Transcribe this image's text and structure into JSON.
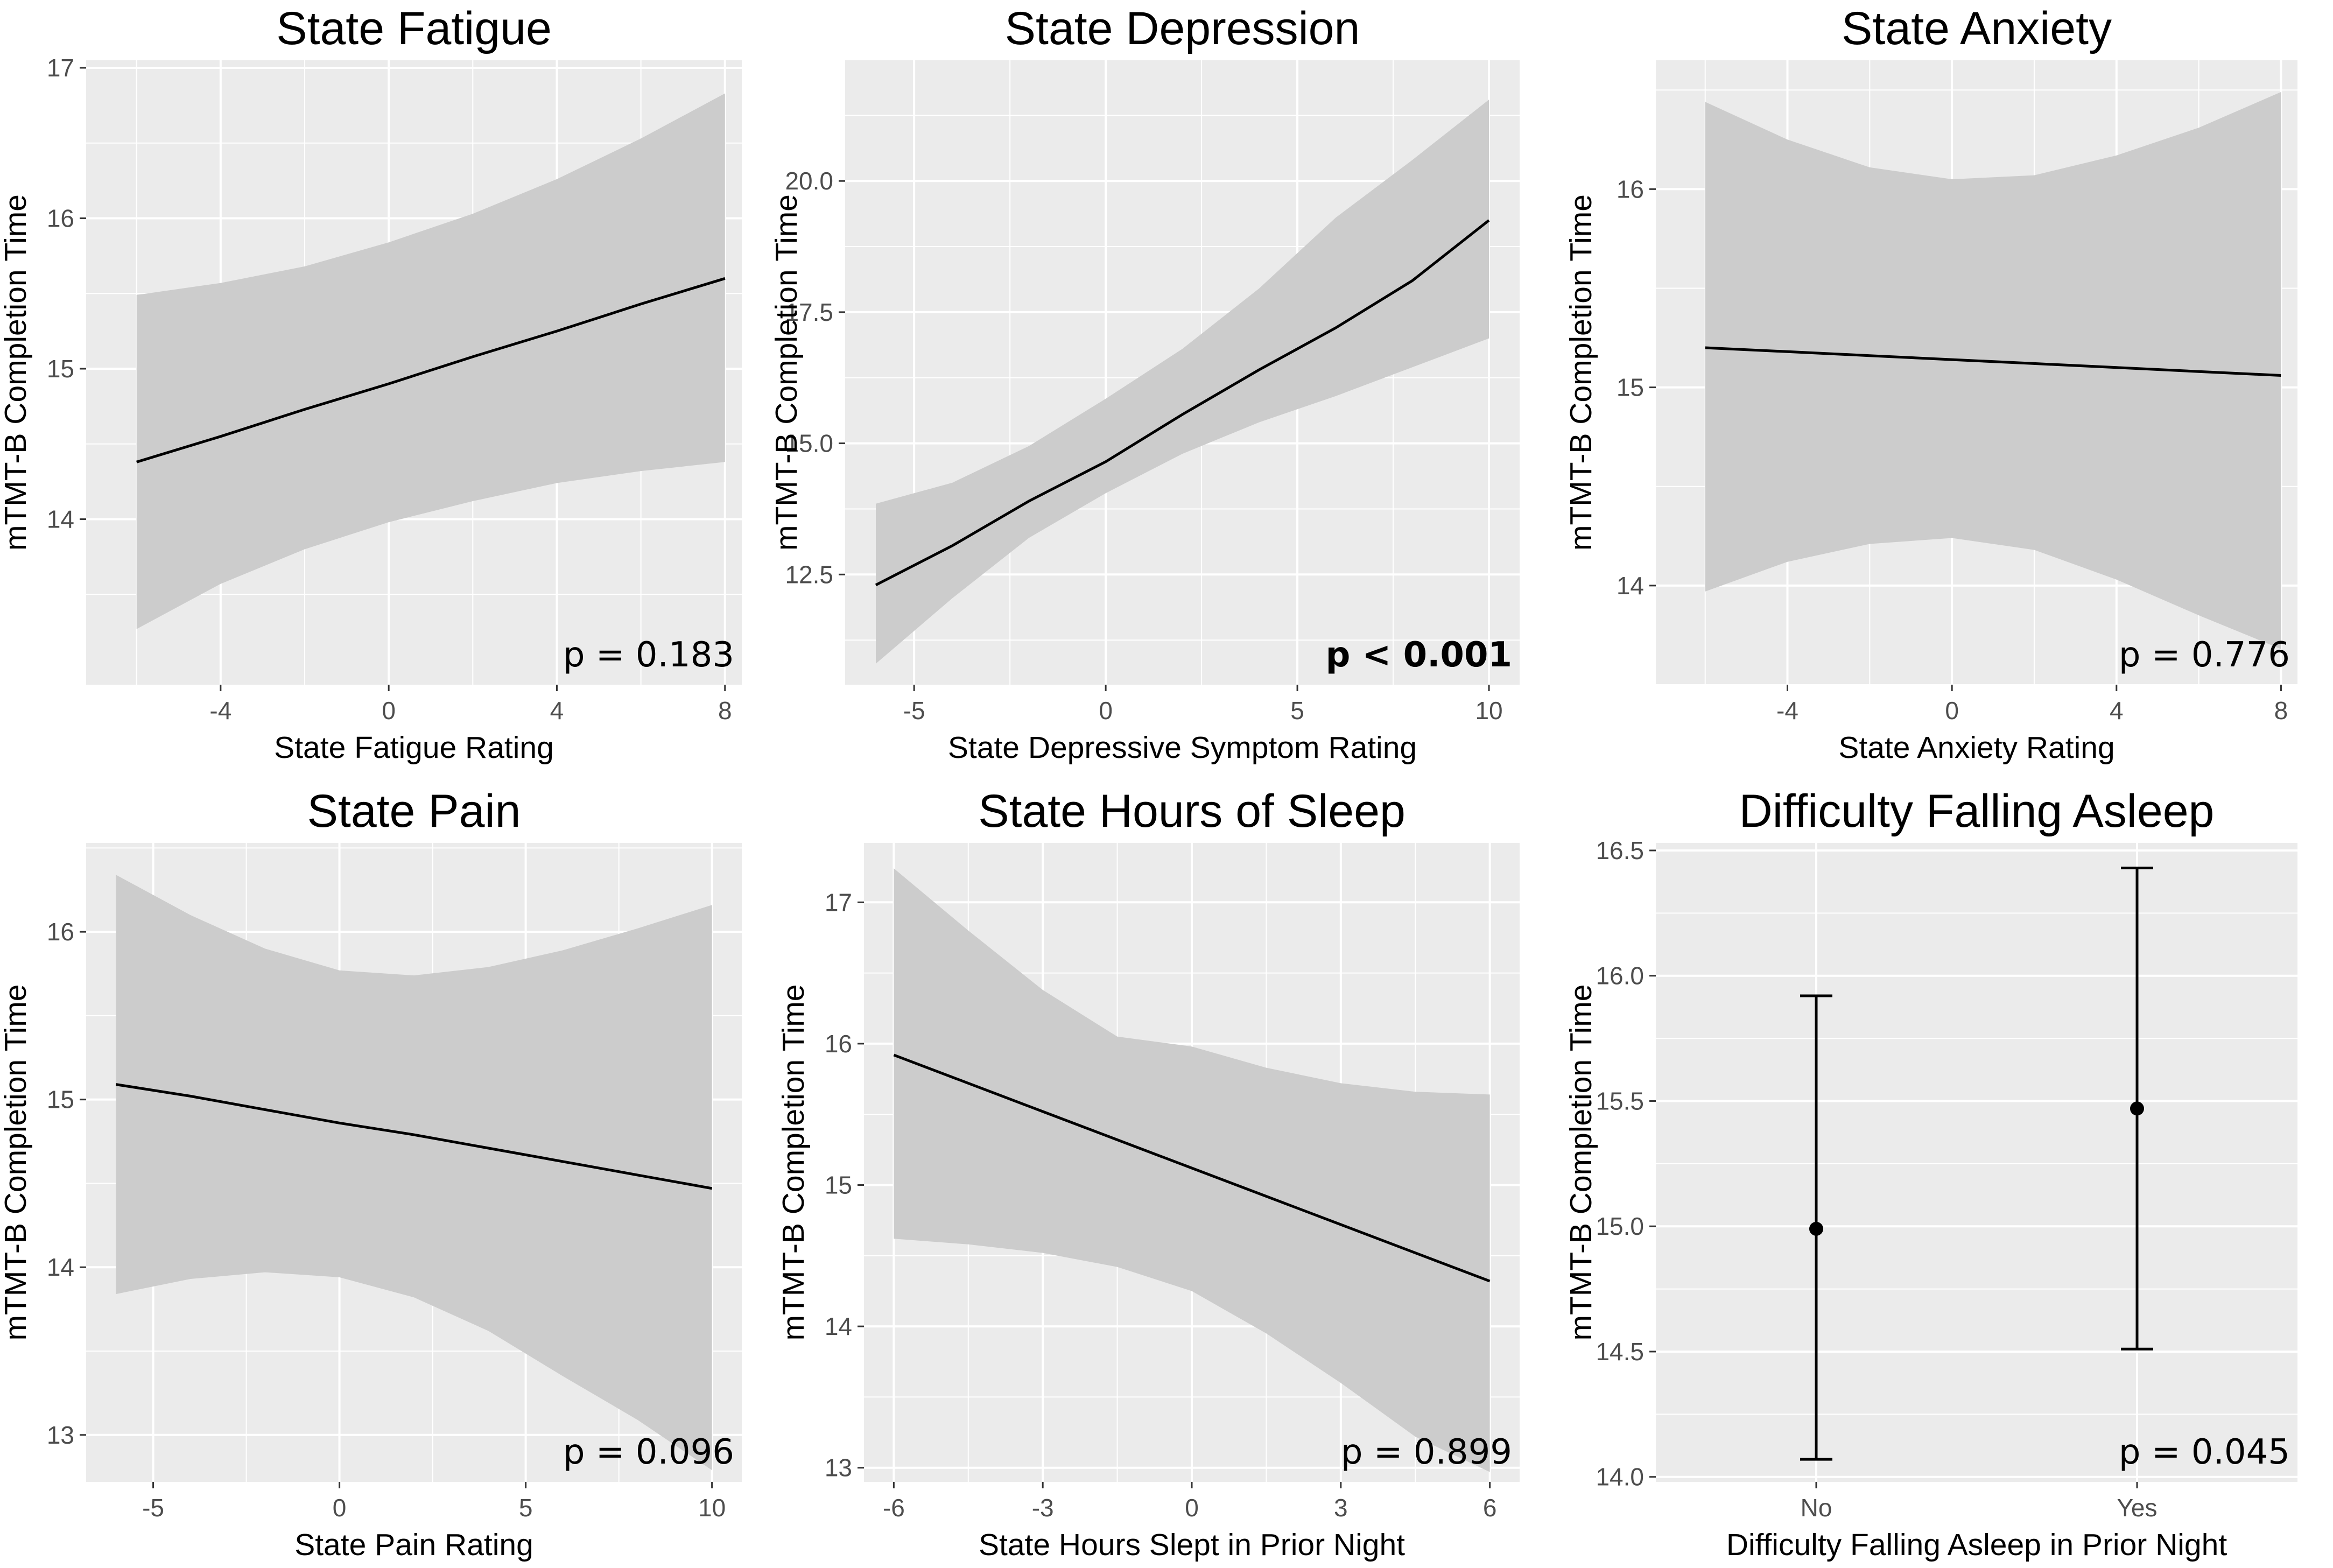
{
  "figure": {
    "background": "#ffffff",
    "panel_background": "#ebebeb",
    "grid_color": "#ffffff",
    "ribbon_color": "#cccccc",
    "line_color": "#000000"
  },
  "chart_data": [
    {
      "type": "line",
      "title": "State Fatigue",
      "xlabel": "State Fatigue Rating",
      "ylabel": "mTMT-B Completion Time",
      "xlim": [
        -7.2,
        8.4
      ],
      "ylim": [
        12.9,
        17.05
      ],
      "xticks": [
        -4,
        0,
        4,
        8
      ],
      "xtick_labels": [
        "-4",
        "0",
        "4",
        "8"
      ],
      "yticks": [
        14,
        15,
        16,
        17
      ],
      "ytick_labels": [
        "14",
        "15",
        "16",
        "17"
      ],
      "x": [
        -6,
        -4,
        -2,
        0,
        2,
        4,
        6,
        8
      ],
      "fit": [
        14.38,
        14.55,
        14.73,
        14.9,
        15.08,
        15.25,
        15.43,
        15.6
      ],
      "lower": [
        13.27,
        13.57,
        13.8,
        13.98,
        14.12,
        14.24,
        14.32,
        14.38
      ],
      "upper": [
        15.49,
        15.57,
        15.68,
        15.84,
        16.03,
        16.26,
        16.53,
        16.83
      ],
      "annotation": "p = 0.183",
      "annotation_bold": false
    },
    {
      "type": "line",
      "title": "State Depression",
      "xlabel": "State Depressive Symptom Rating",
      "ylabel": "mTMT-B Completion Time",
      "xlim": [
        -6.8,
        10.8
      ],
      "ylim": [
        10.4,
        22.3
      ],
      "xticks": [
        -5,
        0,
        5,
        10
      ],
      "xtick_labels": [
        "-5",
        "0",
        "5",
        "10"
      ],
      "yticks": [
        12.5,
        15.0,
        17.5,
        20.0
      ],
      "ytick_labels": [
        "12.5",
        "15.0",
        "17.5",
        "20.0"
      ],
      "x": [
        -6,
        -4,
        -2,
        0,
        2,
        4,
        6,
        8,
        10
      ],
      "fit": [
        12.3,
        13.05,
        13.9,
        14.65,
        15.55,
        16.4,
        17.2,
        18.1,
        19.25
      ],
      "lower": [
        10.8,
        12.05,
        13.2,
        14.05,
        14.8,
        15.4,
        15.9,
        16.45,
        17.0
      ],
      "upper": [
        13.85,
        14.25,
        14.95,
        15.85,
        16.8,
        17.95,
        19.3,
        20.4,
        21.55
      ],
      "annotation": "p < 0.001",
      "annotation_bold": true
    },
    {
      "type": "line",
      "title": "State Anxiety",
      "xlabel": "State Anxiety Rating",
      "ylabel": "mTMT-B Completion Time",
      "xlim": [
        -7.2,
        8.4
      ],
      "ylim": [
        13.5,
        16.65
      ],
      "xticks": [
        -4,
        0,
        4,
        8
      ],
      "xtick_labels": [
        "-4",
        "0",
        "4",
        "8"
      ],
      "yticks": [
        14,
        15,
        16
      ],
      "ytick_labels": [
        "14",
        "15",
        "16"
      ],
      "x": [
        -6,
        -4,
        -2,
        0,
        2,
        4,
        6,
        8
      ],
      "fit": [
        15.2,
        15.18,
        15.16,
        15.14,
        15.12,
        15.1,
        15.08,
        15.06
      ],
      "lower": [
        13.97,
        14.12,
        14.21,
        14.24,
        14.18,
        14.03,
        13.85,
        13.68
      ],
      "upper": [
        16.44,
        16.25,
        16.11,
        16.05,
        16.07,
        16.17,
        16.31,
        16.49
      ],
      "annotation": "p = 0.776",
      "annotation_bold": false
    },
    {
      "type": "line",
      "title": "State Pain",
      "xlabel": "State Pain Rating",
      "ylabel": "mTMT-B Completion Time",
      "xlim": [
        -6.8,
        10.8
      ],
      "ylim": [
        12.72,
        16.53
      ],
      "xticks": [
        -5,
        0,
        5,
        10
      ],
      "xtick_labels": [
        "-5",
        "0",
        "5",
        "10"
      ],
      "yticks": [
        13,
        14,
        15,
        16
      ],
      "ytick_labels": [
        "13",
        "14",
        "15",
        "16"
      ],
      "x": [
        -6,
        -4,
        -2,
        0,
        2,
        4,
        6,
        8,
        10
      ],
      "fit": [
        15.09,
        15.02,
        14.94,
        14.86,
        14.79,
        14.71,
        14.63,
        14.55,
        14.47
      ],
      "lower": [
        13.84,
        13.93,
        13.97,
        13.94,
        13.82,
        13.62,
        13.35,
        13.09,
        12.79
      ],
      "upper": [
        16.34,
        16.1,
        15.9,
        15.77,
        15.74,
        15.79,
        15.89,
        16.02,
        16.16
      ],
      "annotation": "p = 0.096",
      "annotation_bold": false
    },
    {
      "type": "line",
      "title": "State Hours of Sleep",
      "xlabel": "State Hours Slept in Prior Night",
      "ylabel": "mTMT-B Completion Time",
      "xlim": [
        -6.6,
        6.6
      ],
      "ylim": [
        12.9,
        17.42
      ],
      "xticks": [
        -6,
        -3,
        0,
        3,
        6
      ],
      "xtick_labels": [
        "-6",
        "-3",
        "0",
        "3",
        "6"
      ],
      "yticks": [
        13,
        14,
        15,
        16,
        17
      ],
      "ytick_labels": [
        "13",
        "14",
        "15",
        "16",
        "17"
      ],
      "x": [
        -6,
        -4.5,
        -3,
        -1.5,
        0,
        1.5,
        3,
        4.5,
        6
      ],
      "fit": [
        15.92,
        15.72,
        15.52,
        15.32,
        15.12,
        14.92,
        14.72,
        14.52,
        14.32
      ],
      "lower": [
        14.62,
        14.58,
        14.52,
        14.42,
        14.25,
        13.95,
        13.6,
        13.22,
        12.97
      ],
      "upper": [
        17.24,
        16.8,
        16.38,
        16.05,
        15.98,
        15.83,
        15.72,
        15.66,
        15.64
      ],
      "annotation": "p = 0.899",
      "annotation_bold": false
    },
    {
      "type": "errorbar",
      "title": "Difficulty Falling Asleep",
      "xlabel": "Difficulty Falling Asleep in Prior Night",
      "ylabel": "mTMT-B Completion Time",
      "ylim": [
        13.98,
        16.53
      ],
      "yticks": [
        14.0,
        14.5,
        15.0,
        15.5,
        16.0,
        16.5
      ],
      "ytick_labels": [
        "14.0",
        "14.5",
        "15.0",
        "15.5",
        "16.0",
        "16.5"
      ],
      "categories": [
        "No",
        "Yes"
      ],
      "estimates": [
        14.99,
        15.47
      ],
      "lower": [
        14.07,
        14.51
      ],
      "upper": [
        15.92,
        16.43
      ],
      "annotation": "p = 0.045",
      "annotation_bold": false
    }
  ]
}
